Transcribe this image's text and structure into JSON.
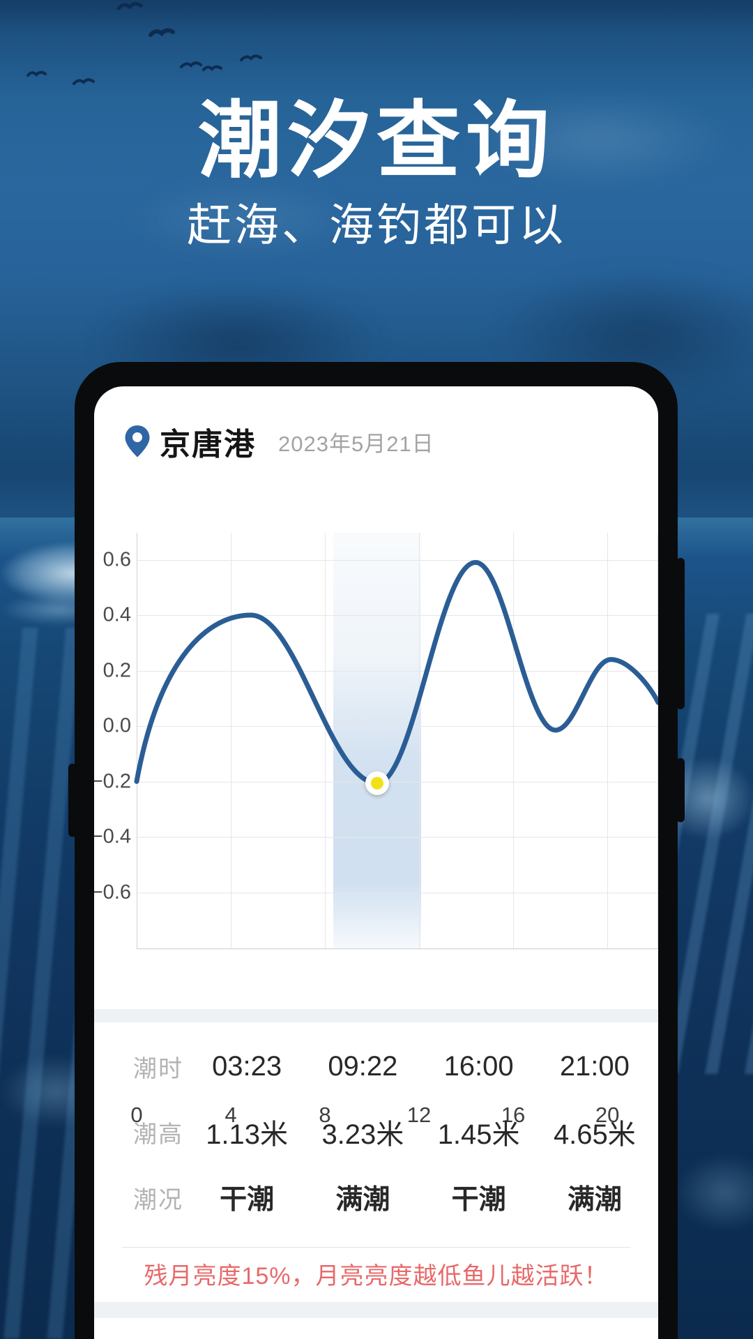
{
  "hero": {
    "title": "潮汐查询",
    "subtitle": "赶海、海钓都可以"
  },
  "phone": {
    "location": "京唐港",
    "date": "2023年5月21日"
  },
  "chart_data": {
    "type": "line",
    "title": "",
    "xlabel": "",
    "ylabel": "",
    "x_ticks": [
      0,
      4,
      8,
      12,
      16,
      20
    ],
    "yticks": [
      "0.6",
      "0.4",
      "0.2",
      "0.0",
      "−0.2",
      "−0.4",
      "−0.6"
    ],
    "ytick_values": [
      0.6,
      0.4,
      0.2,
      0.0,
      -0.2,
      -0.4,
      -0.6
    ],
    "xlim": [
      0,
      22.16
    ],
    "ylim": [
      -0.805,
      0.697
    ],
    "grid": true,
    "legend": false,
    "points": [
      {
        "h": 0.0,
        "v": -0.2
      },
      {
        "h": 4.85,
        "v": 0.4
      },
      {
        "h": 10.22,
        "v": -0.206
      },
      {
        "h": 14.4,
        "v": 0.59
      },
      {
        "h": 17.8,
        "v": -0.015
      },
      {
        "h": 20.15,
        "v": 0.24
      },
      {
        "h": 22.16,
        "v": 0.085
      }
    ],
    "highlight_band": {
      "from_hour": 8.35,
      "to_hour": 12.1
    },
    "marker": {
      "hour": 10.22,
      "value": -0.206
    }
  },
  "table": {
    "rows": [
      {
        "key": "time",
        "label": "潮时",
        "values": [
          "03:23",
          "09:22",
          "16:00",
          "21:00"
        ]
      },
      {
        "key": "height",
        "label": "潮高",
        "values": [
          "1.13米",
          "3.23米",
          "1.45米",
          "4.65米"
        ]
      },
      {
        "key": "condition",
        "label": "潮况",
        "values": [
          "干潮",
          "满潮",
          "干潮",
          "满潮"
        ]
      }
    ]
  },
  "note": "残月亮度15%，月亮亮度越低鱼儿越活跃！",
  "colors": {
    "line": "#2b5d95",
    "marker_fill": "#f2e117",
    "band": "#cadbed",
    "pin": "#2f66a6",
    "note_text": "#e8696a",
    "strip": "#eef2f5",
    "sky": "#2a679e",
    "bird": "#0d2c50"
  }
}
